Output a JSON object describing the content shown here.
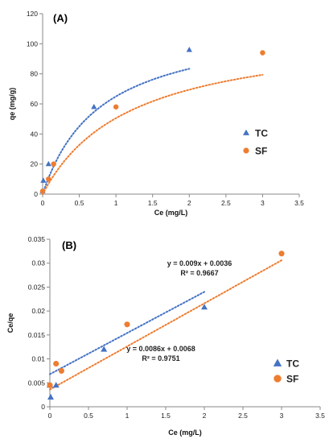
{
  "chart_data": [
    {
      "type": "scatter",
      "panel_label": "(A)",
      "xlabel": "Ce (mg/L)",
      "ylabel": "qe (mg/g)",
      "xlim": [
        0,
        3.5
      ],
      "ylim": [
        0,
        120
      ],
      "xticks": [
        0,
        0.5,
        1,
        1.5,
        2,
        2.5,
        3,
        3.5
      ],
      "xtick_labels": [
        "0",
        "0.5",
        "1",
        "1.5",
        "2",
        "2.5",
        "3",
        "3.5"
      ],
      "yticks": [
        0,
        20,
        40,
        60,
        80,
        100,
        120
      ],
      "ytick_labels": [
        "0",
        "20",
        "40",
        "60",
        "80",
        "100",
        "120"
      ],
      "grid": false,
      "legend_position": "right",
      "series": [
        {
          "name": "TC",
          "marker": "triangle",
          "color": "#4472c4",
          "x": [
            0.0,
            0.01,
            0.08,
            0.7,
            2.0
          ],
          "y": [
            2,
            9,
            20,
            58,
            96
          ],
          "fit": {
            "kind": "langmuir",
            "qmax": 116.3,
            "KL": 1.265,
            "x_range": [
              0,
              2.0
            ]
          }
        },
        {
          "name": "SF",
          "marker": "circle",
          "color": "#ed7d31",
          "x": [
            0.0,
            0.08,
            0.15,
            1.0,
            3.0
          ],
          "y": [
            2,
            10,
            20,
            58,
            94
          ],
          "fit": {
            "kind": "langmuir",
            "qmax": 111.1,
            "KL": 0.8333,
            "x_range": [
              0,
              3.0
            ]
          }
        }
      ]
    },
    {
      "type": "scatter",
      "panel_label": "(B)",
      "xlabel": "Ce (mg/L)",
      "ylabel": "Ce/qe",
      "xlim": [
        0,
        3.5
      ],
      "ylim": [
        0,
        0.035
      ],
      "xticks": [
        0,
        0.5,
        1,
        1.5,
        2,
        2.5,
        3,
        3.5
      ],
      "xtick_labels": [
        "0",
        "0.5",
        "1",
        "1.5",
        "2",
        "2.5",
        "3",
        "3.5"
      ],
      "yticks": [
        0,
        0.005,
        0.01,
        0.015,
        0.02,
        0.025,
        0.03,
        0.035
      ],
      "ytick_labels": [
        "0",
        "0.005",
        "0.01",
        "0.015",
        "0.02",
        "0.025",
        "0.03",
        "0.035"
      ],
      "grid": false,
      "legend_position": "bottom-right",
      "series": [
        {
          "name": "TC",
          "marker": "triangle",
          "color": "#4472c4",
          "x": [
            0.0,
            0.01,
            0.08,
            0.7,
            2.0
          ],
          "y": [
            0.0045,
            0.002,
            0.0045,
            0.012,
            0.0208
          ],
          "fit": {
            "kind": "linear",
            "slope": 0.0086,
            "intercept": 0.0068,
            "x_range": [
              0,
              2.0
            ]
          },
          "equation": "y = 0.0086x + 0.0068",
          "r2": "R² = 0.9751"
        },
        {
          "name": "SF",
          "marker": "circle",
          "color": "#ed7d31",
          "x": [
            0.0,
            0.08,
            0.15,
            1.0,
            3.0
          ],
          "y": [
            0.0045,
            0.009,
            0.0075,
            0.0172,
            0.032
          ],
          "fit": {
            "kind": "linear",
            "slope": 0.009,
            "intercept": 0.0036,
            "x_range": [
              0,
              3.0
            ]
          },
          "equation": "y = 0.009x + 0.0036",
          "r2": "R² = 0.9667"
        }
      ]
    }
  ]
}
